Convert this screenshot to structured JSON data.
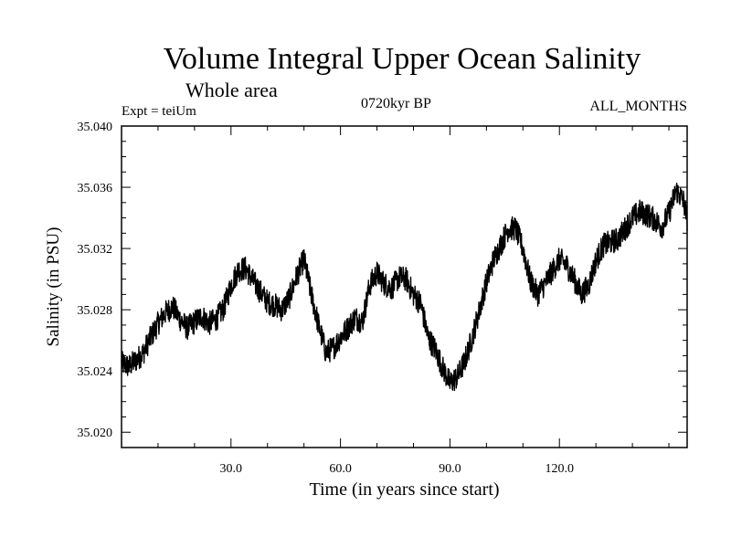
{
  "header": {
    "title": "Volume Integral Upper Ocean Salinity",
    "subtitle": "Whole area",
    "experiment": "Expt = teiUm",
    "period": "0720kyr BP",
    "months": "ALL_MONTHS"
  },
  "colors": {
    "line": "#000000",
    "axis": "#000000",
    "background": "#ffffff"
  },
  "chart_data": {
    "type": "line",
    "title": "Volume Integral Upper Ocean Salinity",
    "subtitle": "Whole area",
    "xlabel": "Time (in years since start)",
    "ylabel": "Salinity (in PSU)",
    "xlim": [
      0,
      155
    ],
    "ylim": [
      35.019,
      35.04
    ],
    "xticks": [
      30,
      60,
      90,
      120
    ],
    "xtick_labels": [
      "30.0",
      "60.0",
      "90.0",
      "120.0"
    ],
    "yticks": [
      35.02,
      35.024,
      35.028,
      35.032,
      35.036,
      35.04
    ],
    "ytick_labels": [
      "35.020",
      "35.024",
      "35.028",
      "35.032",
      "35.036",
      "35.040"
    ],
    "grid": false,
    "series": [
      {
        "name": "salinity",
        "x": [
          0,
          2,
          4,
          6,
          8,
          10,
          12,
          14,
          16,
          18,
          20,
          22,
          24,
          26,
          28,
          30,
          32,
          34,
          36,
          38,
          40,
          42,
          44,
          46,
          48,
          50,
          52,
          54,
          56,
          58,
          60,
          62,
          64,
          66,
          68,
          70,
          72,
          74,
          76,
          78,
          80,
          82,
          84,
          86,
          88,
          90,
          92,
          94,
          96,
          98,
          100,
          102,
          104,
          106,
          108,
          110,
          112,
          114,
          116,
          118,
          120,
          122,
          124,
          126,
          128,
          130,
          132,
          134,
          136,
          138,
          140,
          142,
          144,
          146,
          148,
          150,
          152,
          154,
          155
        ],
        "values": [
          35.0245,
          35.0243,
          35.0247,
          35.0252,
          35.0262,
          35.0271,
          35.0278,
          35.0282,
          35.0274,
          35.0268,
          35.0272,
          35.0276,
          35.0271,
          35.0274,
          35.0281,
          35.0296,
          35.0306,
          35.0307,
          35.0299,
          35.0292,
          35.0285,
          35.0283,
          35.028,
          35.0288,
          35.0302,
          35.0313,
          35.029,
          35.027,
          35.0252,
          35.0255,
          35.0262,
          35.0268,
          35.0275,
          35.0272,
          35.0296,
          35.0304,
          35.0297,
          35.0294,
          35.0301,
          35.03,
          35.029,
          35.0284,
          35.0262,
          35.0254,
          35.0242,
          35.0232,
          35.0236,
          35.0246,
          35.0261,
          35.0279,
          35.0298,
          35.0313,
          35.0323,
          35.0333,
          35.0333,
          35.032,
          35.0299,
          35.029,
          35.0297,
          35.0305,
          35.0313,
          35.0309,
          35.03,
          35.029,
          35.0296,
          35.0312,
          35.0322,
          35.0324,
          35.0326,
          35.0333,
          35.034,
          35.0344,
          35.0342,
          35.0339,
          35.0334,
          35.0343,
          35.0358,
          35.0351,
          35.0339
        ],
        "noise_psu": 0.0008
      }
    ]
  }
}
